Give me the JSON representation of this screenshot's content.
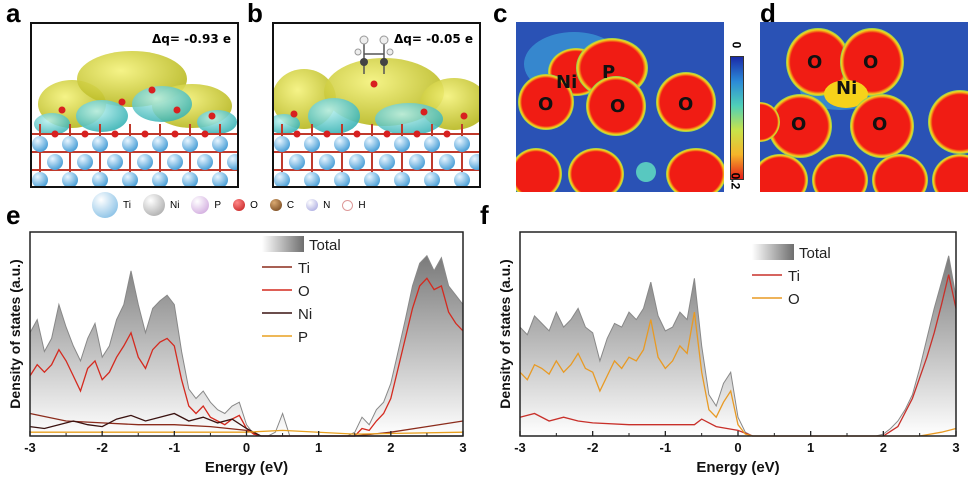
{
  "panels": {
    "a": {
      "label": "a",
      "dq": "Δq= -0.93 e"
    },
    "b": {
      "label": "b",
      "dq": "Δq= -0.05 e"
    },
    "c": {
      "label": "c",
      "atoms": [
        "Ni",
        "P",
        "O",
        "O",
        "O"
      ]
    },
    "d": {
      "label": "d",
      "atoms": [
        "O",
        "O",
        "Ni",
        "O",
        "O"
      ]
    },
    "colorbar": {
      "top": "0",
      "bottom": "0.2"
    },
    "e": {
      "label": "e"
    },
    "f": {
      "label": "f"
    }
  },
  "atom_legend": [
    {
      "symbol": "Ti",
      "color": "#8ec6e8"
    },
    {
      "symbol": "Ni",
      "color": "#c9c9c9"
    },
    {
      "symbol": "P",
      "color": "#d8b6e6"
    },
    {
      "symbol": "O",
      "color": "#d82020"
    },
    {
      "symbol": "C",
      "color": "#8a5a2a"
    },
    {
      "symbol": "N",
      "color": "#b9b9e6"
    },
    {
      "symbol": "H",
      "color": "#f3dede"
    }
  ],
  "chart_data": [
    {
      "type": "area",
      "id": "e",
      "title": "",
      "xlabel": "Energy (eV)",
      "ylabel": "Density of states (a.u.)",
      "xlim": [
        -3,
        3
      ],
      "xticks": [
        "-3",
        "-2",
        "-1",
        "0",
        "1",
        "2",
        "3"
      ],
      "legend": [
        "Total",
        "Ti",
        "O",
        "Ni",
        "P"
      ],
      "series": [
        {
          "name": "Total",
          "color": "#808080",
          "x": [
            -3,
            -2.9,
            -2.8,
            -2.7,
            -2.6,
            -2.5,
            -2.4,
            -2.3,
            -2.2,
            -2.1,
            -2.0,
            -1.9,
            -1.8,
            -1.7,
            -1.6,
            -1.5,
            -1.4,
            -1.3,
            -1.2,
            -1.1,
            -1.0,
            -0.9,
            -0.8,
            -0.7,
            -0.6,
            -0.5,
            -0.4,
            -0.3,
            -0.2,
            -0.1,
            0.0,
            0.1,
            0.2,
            0.3,
            0.4,
            0.5,
            0.6,
            1.4,
            1.5,
            1.6,
            1.7,
            1.8,
            1.9,
            2.0,
            2.1,
            2.2,
            2.3,
            2.4,
            2.5,
            2.6,
            2.7,
            2.8,
            2.9,
            3.0
          ],
          "y": [
            0.55,
            0.62,
            0.45,
            0.52,
            0.7,
            0.58,
            0.48,
            0.4,
            0.52,
            0.6,
            0.42,
            0.48,
            0.62,
            0.7,
            0.88,
            0.7,
            0.55,
            0.68,
            0.72,
            0.75,
            0.7,
            0.45,
            0.25,
            0.2,
            0.24,
            0.18,
            0.14,
            0.12,
            0.16,
            0.18,
            0.06,
            0.01,
            0.0,
            0.0,
            0.02,
            0.12,
            0.0,
            0.0,
            0.02,
            0.1,
            0.06,
            0.14,
            0.18,
            0.28,
            0.45,
            0.62,
            0.8,
            0.92,
            0.96,
            0.88,
            0.95,
            0.8,
            0.75,
            0.7
          ]
        },
        {
          "name": "Ti",
          "color": "#8b2c1c",
          "x": [
            -3,
            -2.5,
            -2.0,
            -1.5,
            -1.0,
            -0.5,
            0.0,
            0.2,
            1.5,
            2.0,
            2.5,
            3.0
          ],
          "y": [
            0.12,
            0.08,
            0.07,
            0.06,
            0.06,
            0.05,
            0.03,
            0.0,
            0.0,
            0.02,
            0.05,
            0.08
          ]
        },
        {
          "name": "O",
          "color": "#d42a1f",
          "x": [
            -3,
            -2.9,
            -2.8,
            -2.7,
            -2.6,
            -2.5,
            -2.4,
            -2.3,
            -2.2,
            -2.1,
            -2.0,
            -1.9,
            -1.8,
            -1.7,
            -1.6,
            -1.5,
            -1.4,
            -1.3,
            -1.2,
            -1.1,
            -1.0,
            -0.9,
            -0.8,
            -0.7,
            -0.6,
            -0.5,
            -0.4,
            -0.3,
            -0.2,
            -0.1,
            0.0,
            0.1,
            0.2,
            1.5,
            1.6,
            1.7,
            1.8,
            1.9,
            2.0,
            2.1,
            2.2,
            2.3,
            2.4,
            2.5,
            2.6,
            2.7,
            2.8,
            2.9,
            3.0
          ],
          "y": [
            0.32,
            0.38,
            0.34,
            0.38,
            0.46,
            0.4,
            0.32,
            0.24,
            0.36,
            0.4,
            0.3,
            0.34,
            0.42,
            0.48,
            0.55,
            0.42,
            0.36,
            0.46,
            0.5,
            0.52,
            0.48,
            0.3,
            0.16,
            0.12,
            0.16,
            0.1,
            0.08,
            0.06,
            0.09,
            0.11,
            0.04,
            0.01,
            0.0,
            0.0,
            0.04,
            0.03,
            0.08,
            0.12,
            0.2,
            0.36,
            0.52,
            0.68,
            0.8,
            0.84,
            0.78,
            0.8,
            0.66,
            0.6,
            0.56
          ]
        },
        {
          "name": "Ni",
          "color": "#3a1210",
          "x": [
            -3,
            -2.8,
            -2.6,
            -2.4,
            -2.2,
            -2.0,
            -1.8,
            -1.6,
            -1.4,
            -1.2,
            -1.0,
            -0.8,
            -0.6,
            -0.4,
            -0.2,
            0.0,
            0.2,
            3.0
          ],
          "y": [
            0.05,
            0.04,
            0.06,
            0.08,
            0.06,
            0.05,
            0.09,
            0.11,
            0.08,
            0.1,
            0.12,
            0.08,
            0.1,
            0.07,
            0.09,
            0.04,
            0.0,
            0.0
          ]
        },
        {
          "name": "P",
          "color": "#e8a020",
          "x": [
            -3,
            -1.0,
            0.0,
            0.5,
            1.5,
            3.0
          ],
          "y": [
            0.02,
            0.02,
            0.02,
            0.03,
            0.01,
            0.02
          ]
        }
      ]
    },
    {
      "type": "area",
      "id": "f",
      "title": "",
      "xlabel": "Energy (eV)",
      "ylabel": "Density of states (a.u.)",
      "xlim": [
        -3,
        3
      ],
      "xticks": [
        "-3",
        "-2",
        "-1",
        "0",
        "1",
        "2",
        "3"
      ],
      "legend": [
        "Total",
        "Ti",
        "O"
      ],
      "series": [
        {
          "name": "Total",
          "color": "#808080",
          "x": [
            -3,
            -2.9,
            -2.8,
            -2.7,
            -2.6,
            -2.5,
            -2.4,
            -2.3,
            -2.2,
            -2.1,
            -2.0,
            -1.9,
            -1.8,
            -1.7,
            -1.6,
            -1.5,
            -1.4,
            -1.3,
            -1.2,
            -1.1,
            -1.0,
            -0.9,
            -0.8,
            -0.7,
            -0.6,
            -0.5,
            -0.4,
            -0.3,
            -0.2,
            -0.1,
            0.0,
            0.1,
            0.2,
            1.9,
            2.0,
            2.1,
            2.2,
            2.3,
            2.4,
            2.5,
            2.6,
            2.7,
            2.8,
            2.9,
            3.0
          ],
          "y": [
            0.58,
            0.54,
            0.64,
            0.6,
            0.56,
            0.66,
            0.58,
            0.62,
            0.68,
            0.58,
            0.55,
            0.4,
            0.52,
            0.6,
            0.58,
            0.66,
            0.62,
            0.68,
            0.82,
            0.64,
            0.56,
            0.58,
            0.66,
            0.62,
            0.84,
            0.48,
            0.22,
            0.16,
            0.28,
            0.34,
            0.1,
            0.02,
            0.0,
            0.0,
            0.01,
            0.04,
            0.08,
            0.14,
            0.22,
            0.36,
            0.52,
            0.68,
            0.82,
            0.96,
            0.74
          ]
        },
        {
          "name": "Ti",
          "color": "#c8302a",
          "x": [
            -3,
            -2.8,
            -2.6,
            -2.4,
            -2.2,
            -2.0,
            -1.5,
            -1.0,
            -0.6,
            -0.5,
            -0.3,
            0.0,
            0.2,
            2.0,
            2.2,
            2.4,
            2.6,
            2.7,
            2.8,
            2.9,
            3.0
          ],
          "y": [
            0.1,
            0.12,
            0.08,
            0.1,
            0.08,
            0.07,
            0.06,
            0.06,
            0.06,
            0.09,
            0.05,
            0.03,
            0.0,
            0.0,
            0.05,
            0.2,
            0.42,
            0.55,
            0.7,
            0.86,
            0.68
          ]
        },
        {
          "name": "O",
          "color": "#e89a24",
          "x": [
            -3,
            -2.9,
            -2.8,
            -2.7,
            -2.6,
            -2.5,
            -2.4,
            -2.3,
            -2.2,
            -2.1,
            -2.0,
            -1.9,
            -1.8,
            -1.7,
            -1.6,
            -1.5,
            -1.4,
            -1.3,
            -1.2,
            -1.1,
            -1.0,
            -0.9,
            -0.8,
            -0.7,
            -0.6,
            -0.5,
            -0.4,
            -0.3,
            -0.2,
            -0.1,
            0.0,
            0.1,
            0.2,
            2.5,
            2.8,
            3.0
          ],
          "y": [
            0.34,
            0.3,
            0.38,
            0.36,
            0.33,
            0.4,
            0.34,
            0.38,
            0.44,
            0.36,
            0.34,
            0.24,
            0.32,
            0.4,
            0.36,
            0.42,
            0.4,
            0.46,
            0.62,
            0.42,
            0.36,
            0.4,
            0.48,
            0.44,
            0.66,
            0.34,
            0.14,
            0.1,
            0.18,
            0.24,
            0.06,
            0.01,
            0.0,
            0.0,
            0.02,
            0.04
          ]
        }
      ]
    }
  ]
}
